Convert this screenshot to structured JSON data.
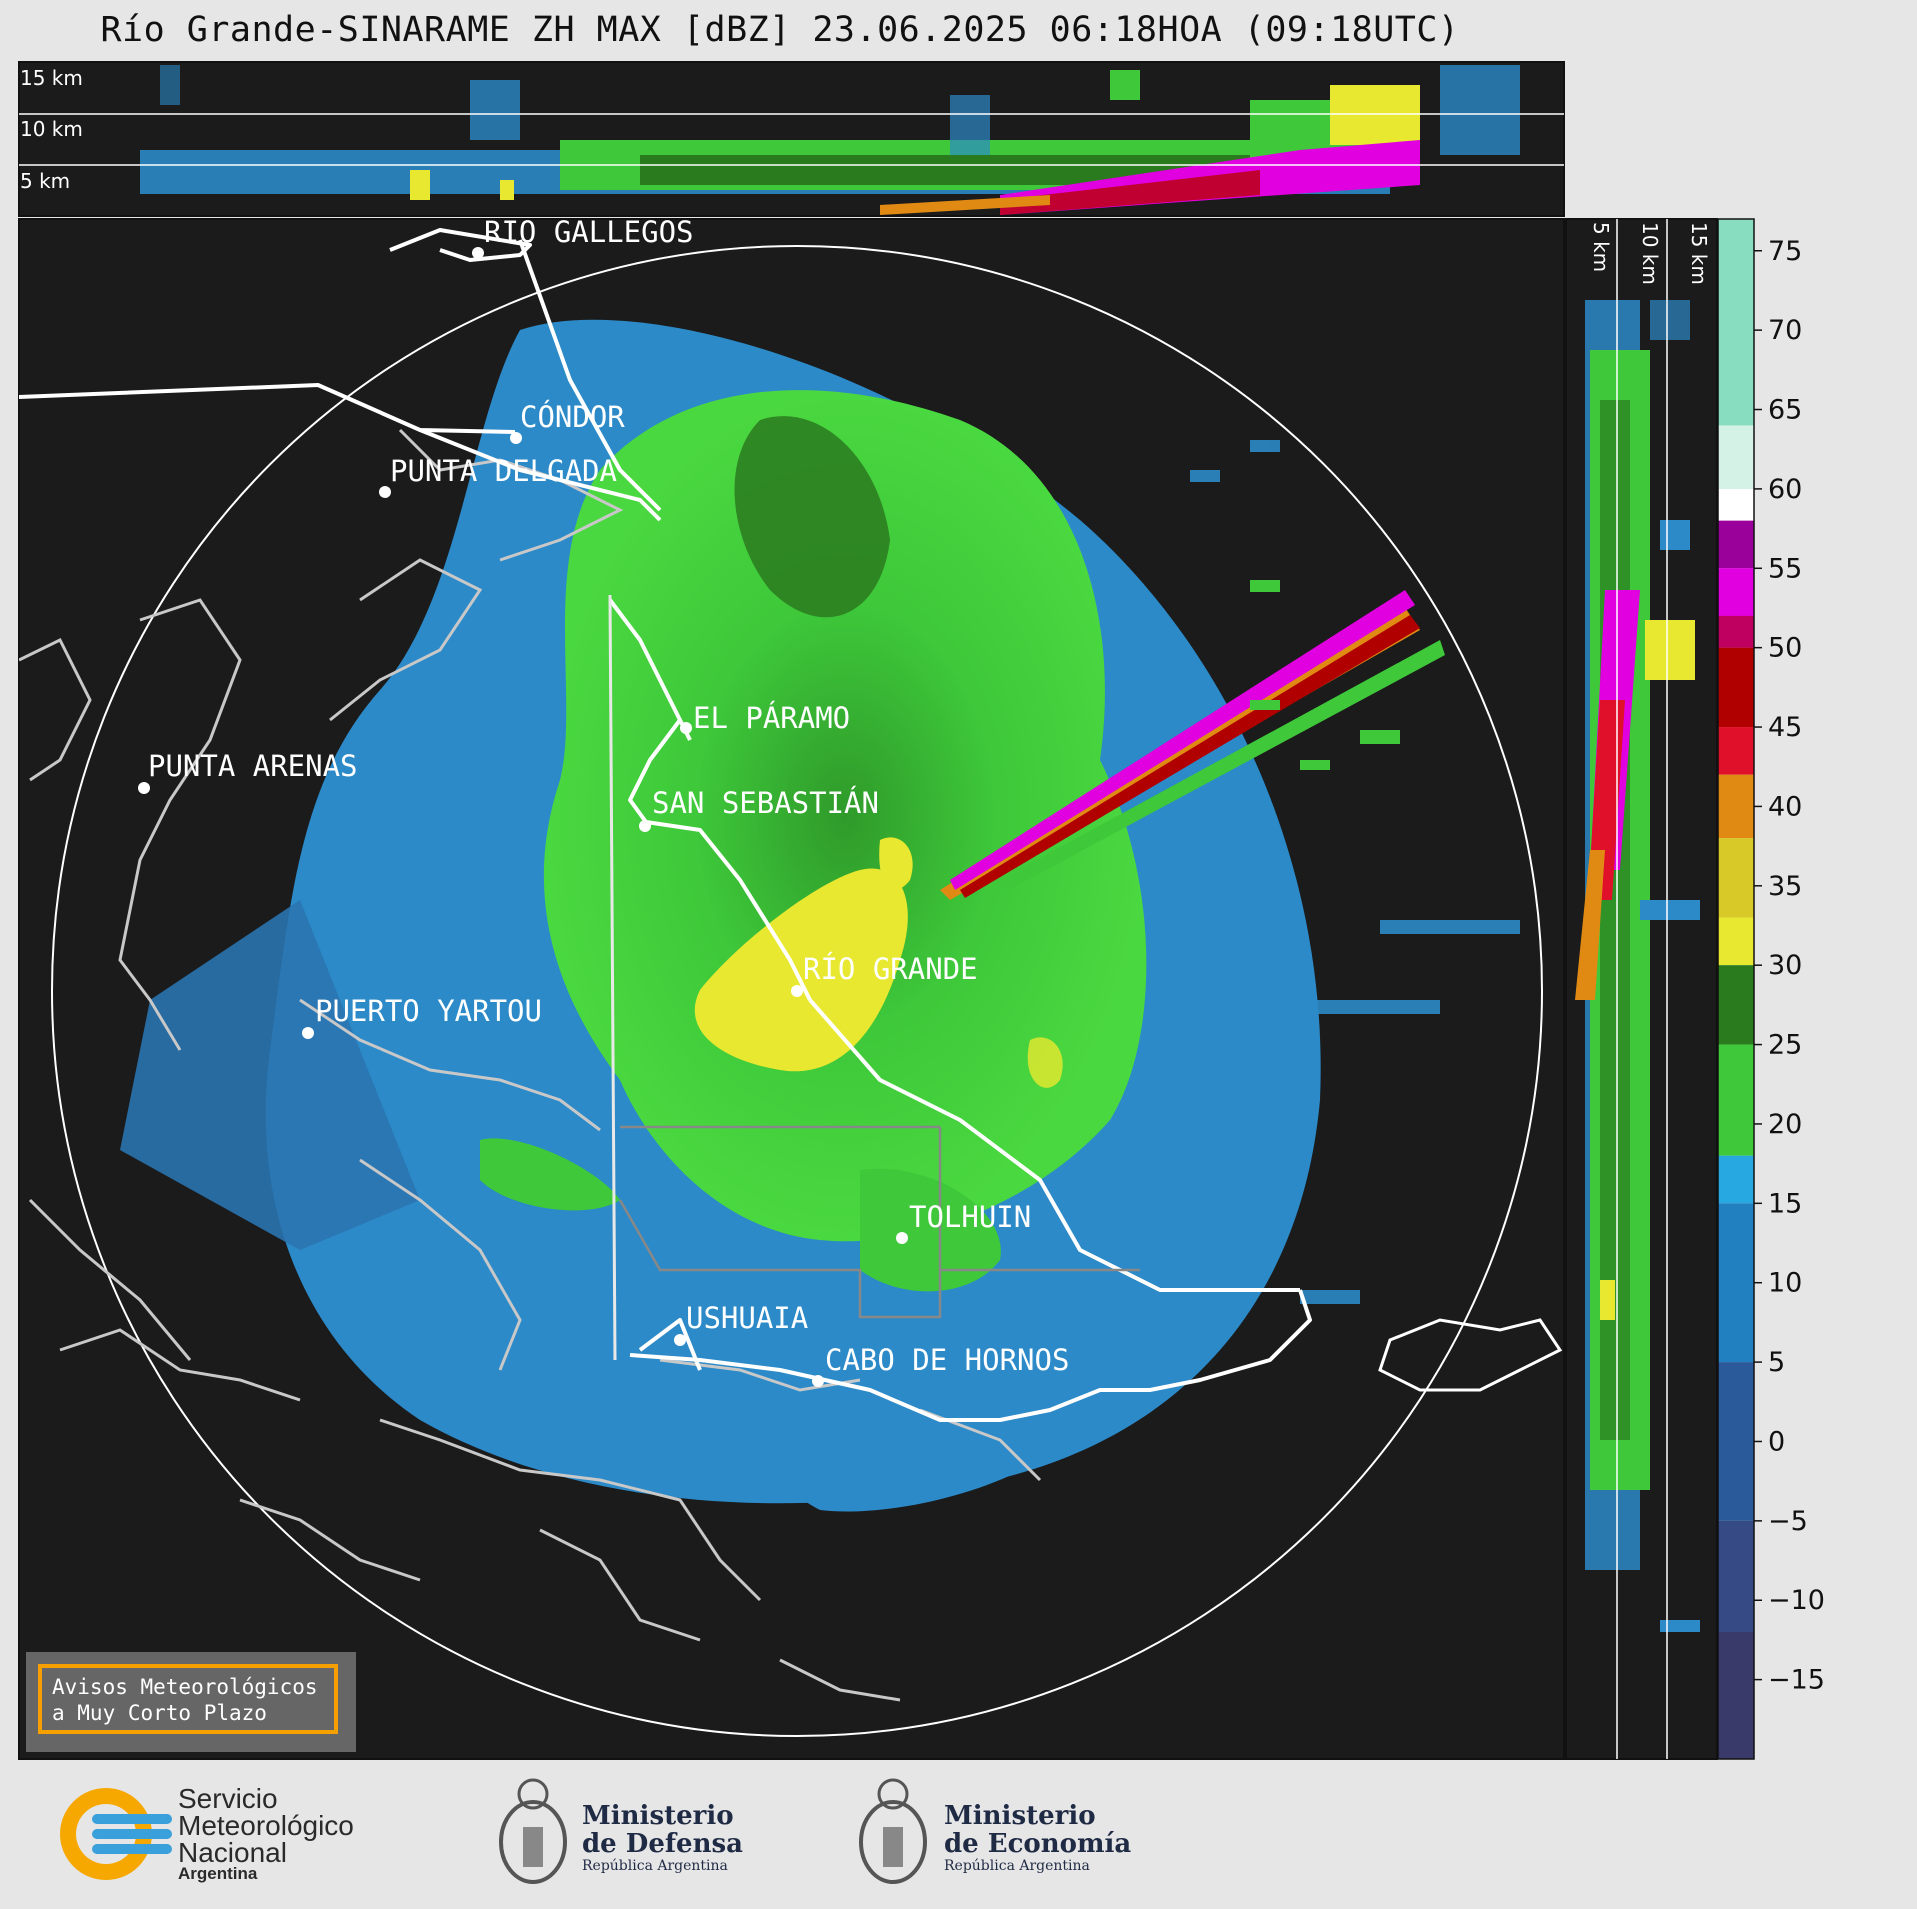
{
  "title": "Río Grande-SINARAME ZH MAX [dBZ] 23.06.2025 06:18HOA (09:18UTC)",
  "height_labels": {
    "top": [
      "15 km",
      "10 km",
      "5 km"
    ],
    "side": [
      "5 km",
      "10 km",
      "15 km"
    ]
  },
  "places": [
    {
      "name": "RÍO GALLEGOS"
    },
    {
      "name": "CÓNDOR"
    },
    {
      "name": "PUNTA DELGADA"
    },
    {
      "name": "EL PÁRAMO"
    },
    {
      "name": "PUNTA ARENAS"
    },
    {
      "name": "SAN SEBASTIÁN"
    },
    {
      "name": "RÍO GRANDE"
    },
    {
      "name": "PUERTO YARTOU"
    },
    {
      "name": "TOLHUIN"
    },
    {
      "name": "USHUAIA"
    },
    {
      "name": "CABO DE HORNOS"
    }
  ],
  "colorbar": {
    "unit": "dBZ",
    "ticks": [
      "75",
      "70",
      "65",
      "60",
      "55",
      "50",
      "45",
      "40",
      "35",
      "30",
      "25",
      "20",
      "15",
      "10",
      "5",
      "0",
      "−5",
      "−10",
      "−15"
    ],
    "colors": [
      "#88dcc0",
      "#a8e6cf",
      "#d4f2e6",
      "#ffffff",
      "#9a009a",
      "#e000e0",
      "#c00060",
      "#b00000",
      "#e0102a",
      "#e08a14",
      "#d8c828",
      "#e8e830",
      "#2a7a1e",
      "#3ec83a",
      "#28a8e0",
      "#2080c0",
      "#2a5a9a",
      "#364a86",
      "#3a3a6a"
    ],
    "scale": "-20 to 77 dBZ"
  },
  "warning_box": {
    "line1": "Avisos Meteorológicos",
    "line2": "a Muy Corto Plazo"
  },
  "logos": {
    "smn": {
      "line1": "Servicio",
      "line2": "Meteorológico",
      "line3": "Nacional",
      "line4": "Argentina"
    },
    "defensa": {
      "line1": "Ministerio",
      "line2": "de Defensa",
      "line3": "República Argentina"
    },
    "economia": {
      "line1": "Ministerio",
      "line2": "de Economía",
      "line3": "República Argentina"
    }
  }
}
